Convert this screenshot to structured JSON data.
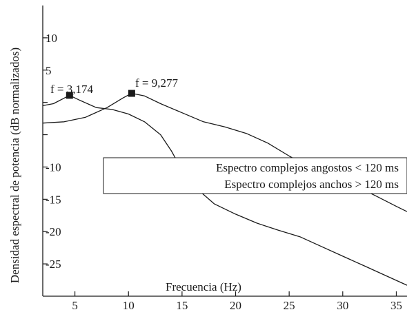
{
  "chart_data": {
    "type": "line",
    "title": "",
    "xlabel": "Frecuencia (Hz)",
    "ylabel": "Densidad espectral de potencia (dB normalizados)",
    "xlim": [
      2,
      36
    ],
    "ylim": [
      -30,
      15
    ],
    "x_ticks": [
      5,
      10,
      15,
      20,
      25,
      30,
      35
    ],
    "x_tick_labels": [
      "5",
      "10",
      "15",
      "20",
      "25",
      "30",
      "35"
    ],
    "y_ticks": [
      10,
      5,
      -10,
      -15,
      -20,
      -25
    ],
    "y_tick_labels": [
      "10",
      "5",
      "-10",
      "-15",
      "-20",
      "-25"
    ],
    "y_minor_ticks": [
      0,
      -5
    ],
    "grid": false,
    "legend_position": "center-right",
    "legend": [
      "Espectro complejos angostos < 120 ms",
      "Espectro complejos anchos > 120 ms"
    ],
    "series": [
      {
        "name": "Espectro complejos angostos < 120 ms",
        "x": [
          2.0,
          3.0,
          4.5,
          5.5,
          7.0,
          8.5,
          10.0,
          11.5,
          13.0,
          14.0,
          15.0,
          16.0,
          18.0,
          20.0,
          22.0,
          24.0,
          26.0,
          28.0,
          30.0,
          32.0,
          34.0,
          36.0
        ],
        "y": [
          -0.5,
          -0.2,
          1.1,
          0.3,
          -0.8,
          -1.1,
          -1.8,
          -3.0,
          -5.0,
          -7.5,
          -10.5,
          -12.8,
          -15.7,
          -17.3,
          -18.7,
          -19.8,
          -20.8,
          -22.3,
          -23.8,
          -25.3,
          -26.8,
          -28.3
        ]
      },
      {
        "name": "Espectro complejos anchos > 120 ms",
        "x": [
          2.0,
          4.0,
          6.0,
          8.0,
          9.5,
          10.3,
          11.5,
          13.0,
          15.0,
          17.0,
          19.0,
          21.0,
          23.0,
          25.0,
          27.0,
          29.0,
          31.0,
          33.0,
          35.0,
          36.0
        ],
        "y": [
          -3.2,
          -3.0,
          -2.3,
          -0.8,
          0.7,
          1.4,
          1.0,
          -0.2,
          -1.6,
          -3.0,
          -3.8,
          -4.8,
          -6.3,
          -8.3,
          -10.2,
          -11.6,
          -12.8,
          -14.4,
          -16.1,
          -16.9
        ]
      }
    ],
    "annotations": [
      {
        "text": "f = 3,174",
        "x": 4.5,
        "y": 1.1,
        "marker": "square",
        "series_index": 0
      },
      {
        "text": "f = 9,277",
        "x": 10.3,
        "y": 1.4,
        "marker": "square",
        "series_index": 1
      }
    ]
  }
}
